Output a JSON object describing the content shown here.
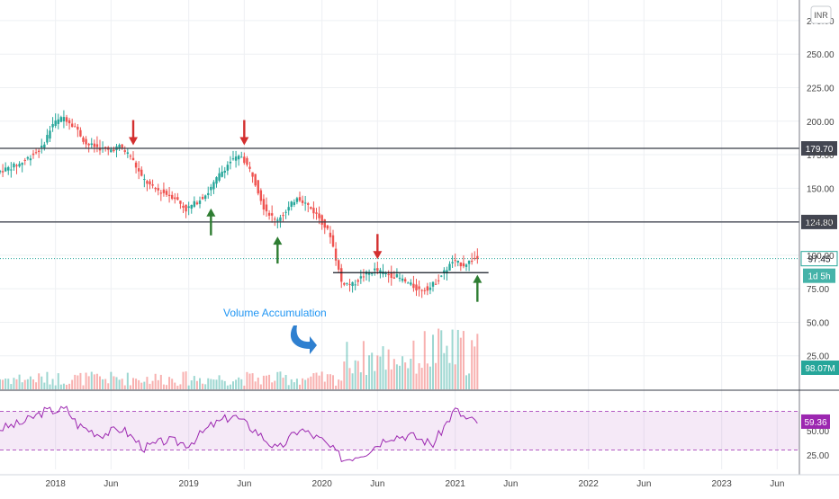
{
  "currency": "INR",
  "colors": {
    "up": "#26a69a",
    "down": "#ef5350",
    "rsi": "#9c27b0",
    "current": "#26a69a",
    "annotation": "#2196f3",
    "arrow_up": "#2e7d32",
    "arrow_down": "#d32f2f"
  },
  "chart_data": [
    {
      "type": "candlestick",
      "title": "",
      "x_ticks": [
        "2018",
        "Jun",
        "2019",
        "Jun",
        "2020",
        "Jun",
        "2021",
        "Jun",
        "2022",
        "Jun",
        "2023",
        "Jun"
      ],
      "y_ticks": [
        "275.00",
        "250.00",
        "225.00",
        "200.00",
        "175.00",
        "150.00",
        "125.00",
        "100.00",
        "75.00",
        "50.00",
        "25.00"
      ],
      "ylim": [
        0,
        285
      ],
      "x_range": [
        "2017-08",
        "2023-08"
      ],
      "horizontal_levels": [
        {
          "label": "179.70",
          "value": 179.7
        },
        {
          "label": "124.80",
          "value": 124.8
        }
      ],
      "support_line": {
        "from": "2020-02",
        "to": "2021-04",
        "value": 87
      },
      "current_price": {
        "label": "97.45",
        "value": 97.45,
        "countdown": "1d 5h"
      },
      "volume_label": "98.07M",
      "annotation": "Volume Accumulation",
      "arrows": [
        {
          "direction": "down",
          "date": "2018-08"
        },
        {
          "direction": "down",
          "date": "2019-06"
        },
        {
          "direction": "down",
          "date": "2020-06"
        },
        {
          "direction": "up",
          "date": "2019-03"
        },
        {
          "direction": "up",
          "date": "2019-09"
        },
        {
          "direction": "up",
          "date": "2021-03"
        }
      ],
      "price_path": [
        [
          "2017-08",
          162
        ],
        [
          "2017-10",
          168
        ],
        [
          "2017-12",
          180
        ],
        [
          "2018-01",
          198
        ],
        [
          "2018-02",
          203
        ],
        [
          "2018-03",
          196
        ],
        [
          "2018-04",
          183
        ],
        [
          "2018-06",
          178
        ],
        [
          "2018-07",
          181
        ],
        [
          "2018-08",
          174
        ],
        [
          "2018-09",
          158
        ],
        [
          "2018-10",
          150
        ],
        [
          "2018-12",
          143
        ],
        [
          "2019-01",
          134
        ],
        [
          "2019-02",
          140
        ],
        [
          "2019-03",
          147
        ],
        [
          "2019-04",
          160
        ],
        [
          "2019-05",
          170
        ],
        [
          "2019-06",
          174
        ],
        [
          "2019-07",
          160
        ],
        [
          "2019-08",
          136
        ],
        [
          "2019-09",
          126
        ],
        [
          "2019-10",
          132
        ],
        [
          "2019-11",
          144
        ],
        [
          "2019-12",
          137
        ],
        [
          "2020-01",
          128
        ],
        [
          "2020-02",
          115
        ],
        [
          "2020-03",
          80
        ],
        [
          "2020-04",
          78
        ],
        [
          "2020-05",
          85
        ],
        [
          "2020-06",
          89
        ],
        [
          "2020-07",
          86
        ],
        [
          "2020-08",
          84
        ],
        [
          "2020-09",
          79
        ],
        [
          "2020-10",
          74
        ],
        [
          "2020-11",
          76
        ],
        [
          "2020-12",
          85
        ],
        [
          "2021-01",
          95
        ],
        [
          "2021-02",
          93
        ],
        [
          "2021-03",
          97.45
        ]
      ]
    },
    {
      "type": "line",
      "title": "",
      "series": [
        {
          "values_label": "59.36"
        }
      ],
      "y_ticks": [
        "50.00",
        "25.00"
      ],
      "ylim": [
        10,
        90
      ],
      "band": [
        30,
        70
      ],
      "current_value": 59.36,
      "rsi_path": [
        [
          "2017-08",
          52
        ],
        [
          "2017-10",
          58
        ],
        [
          "2017-12",
          70
        ],
        [
          "2018-02",
          72
        ],
        [
          "2018-03",
          56
        ],
        [
          "2018-05",
          46
        ],
        [
          "2018-07",
          52
        ],
        [
          "2018-09",
          32
        ],
        [
          "2018-11",
          40
        ],
        [
          "2019-01",
          36
        ],
        [
          "2019-03",
          55
        ],
        [
          "2019-05",
          66
        ],
        [
          "2019-07",
          50
        ],
        [
          "2019-09",
          30
        ],
        [
          "2019-11",
          52
        ],
        [
          "2020-01",
          40
        ],
        [
          "2020-03",
          20
        ],
        [
          "2020-05",
          28
        ],
        [
          "2020-07",
          44
        ],
        [
          "2020-09",
          45
        ],
        [
          "2020-11",
          36
        ],
        [
          "2021-01",
          72
        ],
        [
          "2021-02",
          62
        ],
        [
          "2021-03",
          59.36
        ]
      ]
    }
  ]
}
